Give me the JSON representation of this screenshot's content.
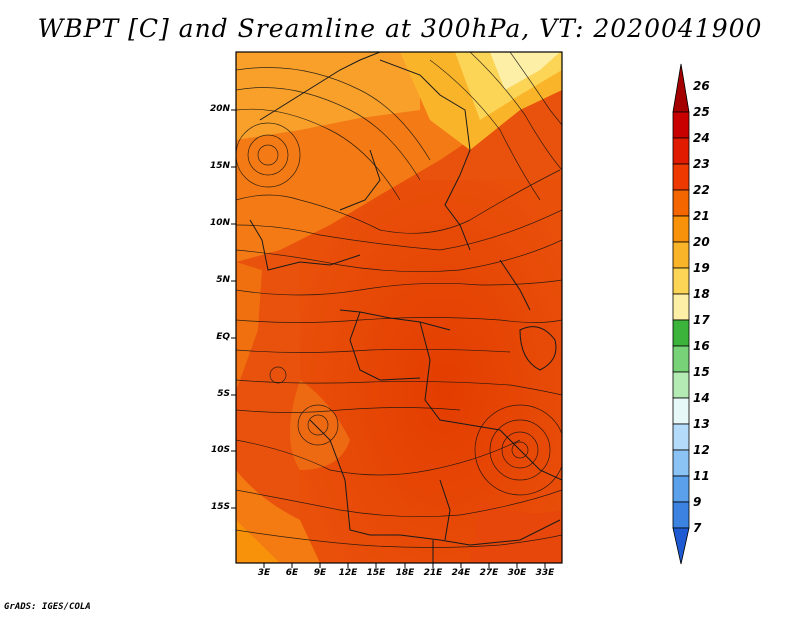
{
  "title": "WBPT [C] and Sreamline at 300hPa, VT: 2020041900",
  "map": {
    "lat_labels": [
      "20N",
      "15N",
      "10N",
      "5N",
      "EQ",
      "5S",
      "10S",
      "15S"
    ],
    "lon_labels": [
      "3E",
      "6E",
      "9E",
      "12E",
      "15E",
      "18E",
      "21E",
      "24E",
      "27E",
      "30E",
      "33E"
    ]
  },
  "colorbar": {
    "labels": [
      "26",
      "25",
      "24",
      "23",
      "22",
      "21",
      "20",
      "19",
      "18",
      "17",
      "16",
      "15",
      "14",
      "13",
      "12",
      "11",
      "9",
      "7"
    ],
    "colors": [
      "#a50000",
      "#c80000",
      "#e11b00",
      "#ee3a00",
      "#f46600",
      "#f8920a",
      "#fab42a",
      "#fcd456",
      "#fdf0a6",
      "#3cb43c",
      "#78d278",
      "#b4eab4",
      "#e6f8f8",
      "#b4dcfa",
      "#8cc3f5",
      "#5aa0eb",
      "#3c82e1",
      "#1e5ad2"
    ]
  },
  "credit": "GrADS: IGES/COLA"
}
